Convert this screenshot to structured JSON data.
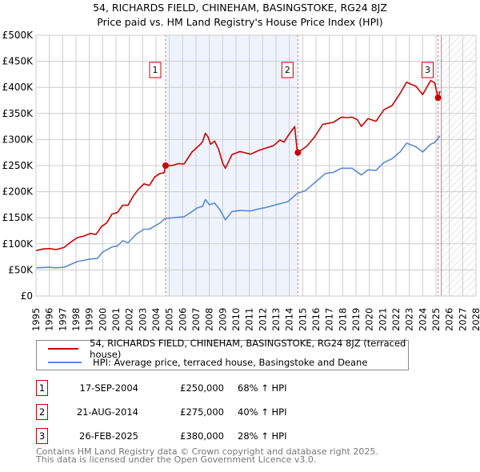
{
  "chart_data": {
    "type": "line",
    "title": "54, RICHARDS FIELD, CHINEHAM, BASINGSTOKE, RG24 8JZ",
    "subtitle": "Price paid vs. HM Land Registry's House Price Index (HPI)",
    "xlim": [
      1995,
      2028
    ],
    "ylim": [
      0,
      500000
    ],
    "x_ticks": [
      "1995",
      "1996",
      "1997",
      "1998",
      "1999",
      "2000",
      "2001",
      "2002",
      "2003",
      "2004",
      "2005",
      "2006",
      "2007",
      "2008",
      "2009",
      "2010",
      "2011",
      "2012",
      "2013",
      "2014",
      "2015",
      "2016",
      "2017",
      "2018",
      "2019",
      "2020",
      "2021",
      "2022",
      "2023",
      "2024",
      "2025",
      "2026",
      "2027",
      "2028"
    ],
    "y_ticks": [
      {
        "v": 0,
        "label": "£0"
      },
      {
        "v": 50000,
        "label": "£50K"
      },
      {
        "v": 100000,
        "label": "£100K"
      },
      {
        "v": 150000,
        "label": "£150K"
      },
      {
        "v": 200000,
        "label": "£200K"
      },
      {
        "v": 250000,
        "label": "£250K"
      },
      {
        "v": 300000,
        "label": "£300K"
      },
      {
        "v": 350000,
        "label": "£350K"
      },
      {
        "v": 400000,
        "label": "£400K"
      },
      {
        "v": 450000,
        "label": "£450K"
      },
      {
        "v": 500000,
        "label": "£500K"
      }
    ],
    "grid": true,
    "shaded_period": [
      2004.72,
      2014.64
    ],
    "forecast_hatch_from": 2025.4,
    "series": [
      {
        "name": "54, RICHARDS FIELD, CHINEHAM, BASINGSTOKE, RG24 8JZ (terraced house)",
        "color": "#cc0000",
        "points": [
          [
            1995,
            87
          ],
          [
            1995.5,
            90
          ],
          [
            1996,
            91
          ],
          [
            1996.5,
            89
          ],
          [
            1997.1,
            93
          ],
          [
            1997.6,
            103
          ],
          [
            1998.1,
            112
          ],
          [
            1998.6,
            115
          ],
          [
            1999.1,
            120
          ],
          [
            1999.5,
            118
          ],
          [
            1999.9,
            133
          ],
          [
            2000.3,
            140
          ],
          [
            2000.7,
            157
          ],
          [
            2001.1,
            160
          ],
          [
            2001.5,
            174
          ],
          [
            2001.9,
            174
          ],
          [
            2002.3,
            192
          ],
          [
            2002.7,
            205
          ],
          [
            2003.1,
            215
          ],
          [
            2003.5,
            212
          ],
          [
            2003.9,
            228
          ],
          [
            2004.3,
            235
          ],
          [
            2004.6,
            236
          ],
          [
            2004.72,
            250
          ],
          [
            2005.2,
            250
          ],
          [
            2005.7,
            254
          ],
          [
            2006.1,
            253
          ],
          [
            2006.7,
            276
          ],
          [
            2007.3,
            290
          ],
          [
            2007.5,
            296
          ],
          [
            2007.7,
            312
          ],
          [
            2007.9,
            305
          ],
          [
            2008.1,
            291
          ],
          [
            2008.4,
            297
          ],
          [
            2008.7,
            281
          ],
          [
            2009.0,
            255
          ],
          [
            2009.2,
            245
          ],
          [
            2009.7,
            271
          ],
          [
            2010.3,
            277
          ],
          [
            2011.1,
            272
          ],
          [
            2011.7,
            279
          ],
          [
            2012.3,
            284
          ],
          [
            2012.8,
            288
          ],
          [
            2013.3,
            299
          ],
          [
            2013.6,
            295
          ],
          [
            2013.9,
            307
          ],
          [
            2014.4,
            325
          ],
          [
            2014.6,
            275
          ],
          [
            2014.64,
            275
          ],
          [
            2015.3,
            287
          ],
          [
            2015.9,
            305
          ],
          [
            2016.5,
            329
          ],
          [
            2016.9,
            331
          ],
          [
            2017.3,
            333
          ],
          [
            2017.9,
            343
          ],
          [
            2018.3,
            342
          ],
          [
            2018.7,
            343
          ],
          [
            2019.1,
            338
          ],
          [
            2019.4,
            325
          ],
          [
            2019.9,
            340
          ],
          [
            2020.5,
            335
          ],
          [
            2021.1,
            357
          ],
          [
            2021.7,
            365
          ],
          [
            2022.3,
            388
          ],
          [
            2022.8,
            410
          ],
          [
            2023.2,
            405
          ],
          [
            2023.5,
            402
          ],
          [
            2024.0,
            386
          ],
          [
            2024.6,
            413
          ],
          [
            2024.9,
            409
          ],
          [
            2025.15,
            380
          ],
          [
            2025.3,
            393
          ]
        ]
      },
      {
        "name": "HPI: Average price, terraced house, Basingstoke and Deane",
        "color": "#5b8bd0",
        "points": [
          [
            1995,
            54
          ],
          [
            1996,
            55
          ],
          [
            1996.5,
            54
          ],
          [
            1997.1,
            55
          ],
          [
            1998.1,
            66
          ],
          [
            1999.1,
            71
          ],
          [
            1999.6,
            72
          ],
          [
            2000.0,
            84
          ],
          [
            2000.7,
            94
          ],
          [
            2001.1,
            96
          ],
          [
            2001.5,
            106
          ],
          [
            2001.9,
            102
          ],
          [
            2002.5,
            118
          ],
          [
            2003.1,
            128
          ],
          [
            2003.5,
            128
          ],
          [
            2004.3,
            140
          ],
          [
            2004.7,
            149
          ],
          [
            2005.3,
            150
          ],
          [
            2006.1,
            152
          ],
          [
            2006.6,
            160
          ],
          [
            2007.1,
            169
          ],
          [
            2007.5,
            172
          ],
          [
            2007.7,
            185
          ],
          [
            2008.0,
            175
          ],
          [
            2008.4,
            178
          ],
          [
            2008.8,
            165
          ],
          [
            2009.2,
            146
          ],
          [
            2009.7,
            162
          ],
          [
            2010.3,
            164
          ],
          [
            2011.1,
            163
          ],
          [
            2011.7,
            167
          ],
          [
            2012.3,
            170
          ],
          [
            2013.0,
            175
          ],
          [
            2013.9,
            181
          ],
          [
            2014.6,
            197
          ],
          [
            2015.2,
            202
          ],
          [
            2015.9,
            217
          ],
          [
            2016.7,
            235
          ],
          [
            2017.3,
            237
          ],
          [
            2017.9,
            245
          ],
          [
            2018.7,
            245
          ],
          [
            2019.4,
            232
          ],
          [
            2019.9,
            242
          ],
          [
            2020.5,
            241
          ],
          [
            2021.1,
            256
          ],
          [
            2021.7,
            263
          ],
          [
            2022.3,
            276
          ],
          [
            2022.8,
            293
          ],
          [
            2023.5,
            286
          ],
          [
            2024.0,
            276
          ],
          [
            2024.6,
            291
          ],
          [
            2024.9,
            294
          ],
          [
            2025.3,
            307
          ]
        ]
      }
    ],
    "sales": [
      {
        "id": "1",
        "x": 2004.72,
        "value": 250
      },
      {
        "id": "2",
        "x": 2014.64,
        "value": 275
      },
      {
        "id": "3",
        "x": 2025.15,
        "value": 380
      }
    ]
  },
  "legend": {
    "property": "54, RICHARDS FIELD, CHINEHAM, BASINGSTOKE, RG24 8JZ (terraced house)",
    "hpi": "HPI: Average price, terraced house, Basingstoke and Deane"
  },
  "transactions": [
    {
      "num": "1",
      "date": "17-SEP-2004",
      "price": "£250,000",
      "hpi": "68% ↑ HPI"
    },
    {
      "num": "2",
      "date": "21-AUG-2014",
      "price": "£275,000",
      "hpi": "40% ↑ HPI"
    },
    {
      "num": "3",
      "date": "26-FEB-2025",
      "price": "£380,000",
      "hpi": "28% ↑ HPI"
    }
  ],
  "footer": {
    "line1": "Contains HM Land Registry data © Crown copyright and database right 2025.",
    "line2": "This data is licensed under the Open Government Licence v3.0."
  }
}
